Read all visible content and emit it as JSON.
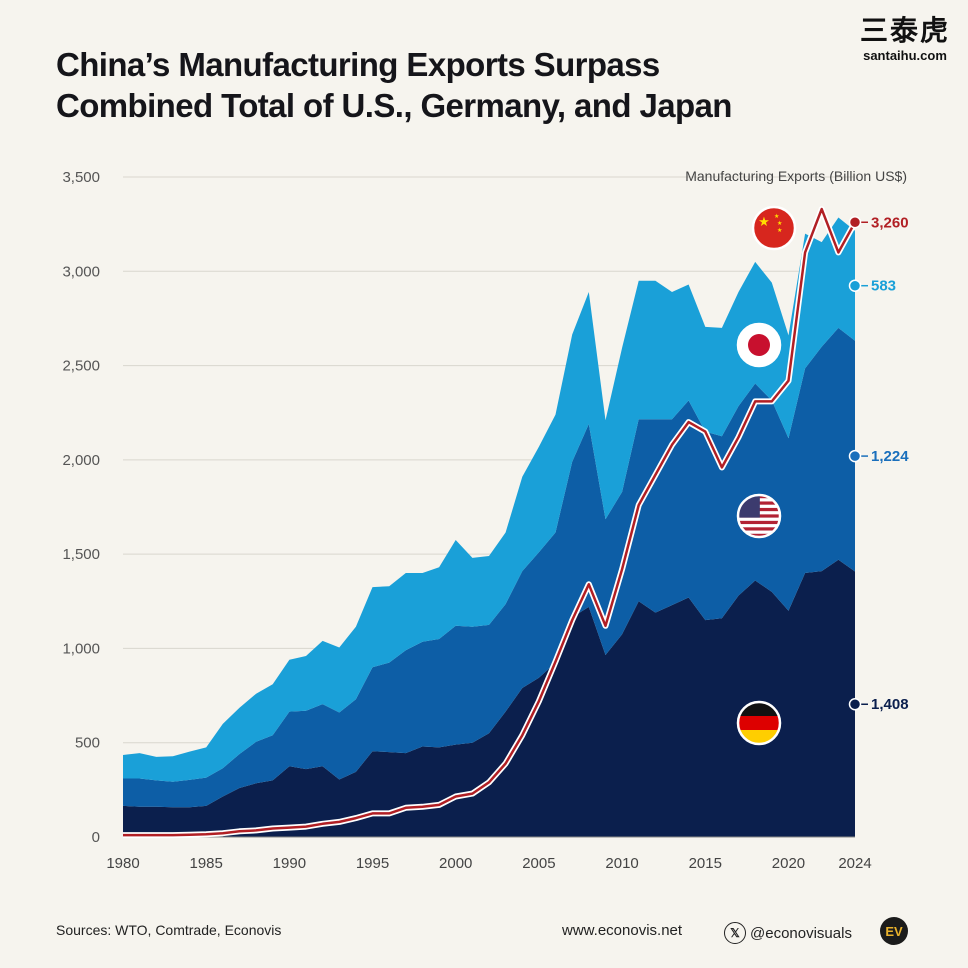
{
  "title": {
    "line1": "China’s Manufacturing Exports Surpass",
    "line2": "Combined Total of U.S., Germany, and Japan"
  },
  "brand": {
    "name": "三泰虎",
    "url": "santaihu.com"
  },
  "footer": {
    "sources": "Sources: WTO, Comtrade, Econovis",
    "website": "www.econovis.net",
    "social": "@econovisuals",
    "social_icon": "x-icon",
    "logo": "EV"
  },
  "chart_data": {
    "type": "area",
    "ylabel": "Manufacturing Exports (Billion US$)",
    "ylim": [
      0,
      3500
    ],
    "yticks": [
      0,
      500,
      1000,
      1500,
      2000,
      2500,
      3000,
      3500
    ],
    "ytick_labels": [
      "0",
      "500",
      "1,000",
      "1,500",
      "2,000",
      "2,500",
      "3,000",
      "3,500"
    ],
    "xlim": [
      1980,
      2024
    ],
    "xticks": [
      1980,
      1985,
      1990,
      1995,
      2000,
      2005,
      2010,
      2015,
      2020,
      2024
    ],
    "xtick_labels": [
      "1980",
      "1985",
      "1990",
      "1995",
      "2000",
      "2005",
      "2010",
      "2015",
      "2020",
      "2024"
    ],
    "grid": "horizontal",
    "x": [
      1980,
      1981,
      1982,
      1983,
      1984,
      1985,
      1986,
      1987,
      1988,
      1989,
      1990,
      1991,
      1992,
      1993,
      1994,
      1995,
      1996,
      1997,
      1998,
      1999,
      2000,
      2001,
      2002,
      2003,
      2004,
      2005,
      2006,
      2007,
      2008,
      2009,
      2010,
      2011,
      2012,
      2013,
      2014,
      2015,
      2016,
      2017,
      2018,
      2019,
      2020,
      2021,
      2022,
      2023,
      2024
    ],
    "stacked_areas": [
      {
        "country": "Germany",
        "icon": "germany-flag-icon",
        "color": "#0b1f4d",
        "final_label": "1,408",
        "label_color": "#0b1f4d",
        "values": [
          165,
          160,
          160,
          158,
          158,
          165,
          215,
          260,
          285,
          300,
          375,
          360,
          375,
          305,
          345,
          455,
          450,
          445,
          480,
          475,
          490,
          500,
          550,
          665,
          790,
          845,
          925,
          1165,
          1220,
          965,
          1075,
          1250,
          1190,
          1230,
          1270,
          1150,
          1160,
          1280,
          1360,
          1300,
          1200,
          1400,
          1410,
          1470,
          1408
        ]
      },
      {
        "country": "United States",
        "icon": "us-flag-icon",
        "color": "#0d5ea6",
        "final_label": "1,224",
        "label_color": "#1a6fbc",
        "values": [
          145,
          150,
          140,
          135,
          145,
          150,
          150,
          180,
          220,
          240,
          290,
          310,
          330,
          355,
          385,
          445,
          475,
          545,
          555,
          575,
          630,
          615,
          575,
          570,
          620,
          665,
          690,
          825,
          970,
          720,
          755,
          965,
          1025,
          985,
          1045,
          1000,
          965,
          1005,
          1045,
          1015,
          915,
          1085,
          1190,
          1230,
          1224
        ]
      },
      {
        "country": "Japan",
        "icon": "japan-flag-icon",
        "color": "#1aa0d8",
        "final_label": "583",
        "label_color": "#1aa0d8",
        "values": [
          125,
          135,
          125,
          135,
          150,
          160,
          235,
          245,
          255,
          270,
          275,
          290,
          335,
          345,
          385,
          425,
          405,
          410,
          365,
          380,
          455,
          365,
          365,
          380,
          500,
          560,
          625,
          675,
          700,
          525,
          765,
          735,
          735,
          675,
          615,
          555,
          575,
          605,
          645,
          625,
          545,
          715,
          555,
          585,
          583
        ]
      }
    ],
    "line": {
      "country": "China",
      "icon": "china-flag-icon",
      "color": "#b11f24",
      "final_label": "3,260",
      "values": [
        10,
        10,
        10,
        10,
        12,
        15,
        20,
        30,
        35,
        45,
        50,
        55,
        70,
        80,
        100,
        125,
        125,
        155,
        160,
        170,
        215,
        230,
        290,
        390,
        540,
        720,
        930,
        1150,
        1340,
        1120,
        1420,
        1760,
        1920,
        2080,
        2200,
        2150,
        1960,
        2120,
        2310,
        2310,
        2420,
        3100,
        3330,
        3100,
        3260
      ]
    }
  }
}
